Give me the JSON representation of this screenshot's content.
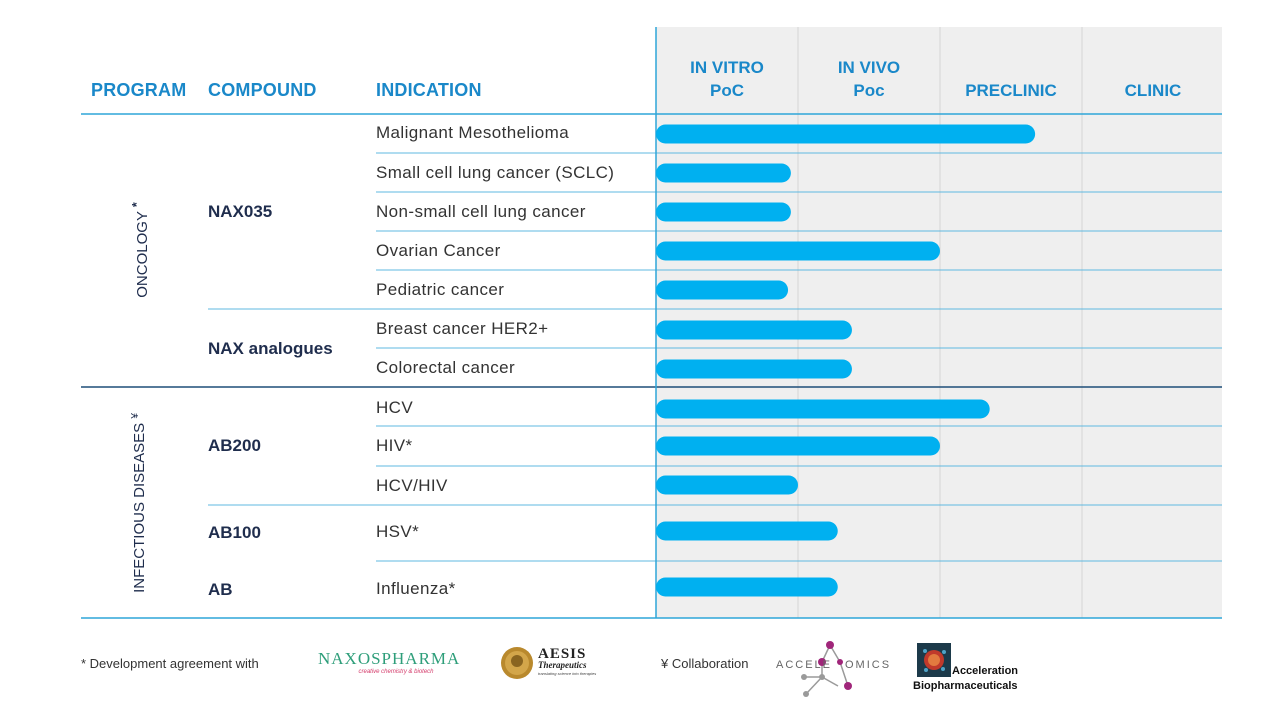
{
  "header": {
    "program": "PROGRAM",
    "compound": "COMPOUND",
    "indication": "INDICATION"
  },
  "chart_data": {
    "type": "bar",
    "orientation": "horizontal",
    "stages": [
      {
        "line1": "IN VITRO",
        "line2": "PoC"
      },
      {
        "line1": "IN VIVO",
        "line2": "Poc"
      },
      {
        "line1": "PRECLINIC",
        "line2": ""
      },
      {
        "line1": "CLINIC",
        "line2": ""
      }
    ],
    "xlim": [
      0,
      4
    ],
    "bar_color": "#00b0f0",
    "rows": [
      {
        "indication": "Malignant Mesothelioma",
        "value": 2.67
      },
      {
        "indication": "Small cell lung cancer (SCLC)",
        "value": 0.95
      },
      {
        "indication": "Non-small cell lung cancer",
        "value": 0.95
      },
      {
        "indication": "Ovarian Cancer",
        "value": 2.0
      },
      {
        "indication": "Pediatric cancer",
        "value": 0.93
      },
      {
        "indication": "Breast cancer HER2+",
        "value": 1.38
      },
      {
        "indication": "Colorectal cancer",
        "value": 1.38
      },
      {
        "indication": "HCV",
        "value": 2.35
      },
      {
        "indication": "HIV*",
        "value": 2.0
      },
      {
        "indication": "HCV/HIV",
        "value": 1.0
      },
      {
        "indication": "HSV*",
        "value": 1.28
      },
      {
        "indication": "Influenza*",
        "value": 1.28
      }
    ],
    "compounds": [
      {
        "label": "NAX035"
      },
      {
        "label": "NAX analogues"
      },
      {
        "label": "AB200"
      },
      {
        "label": "AB100"
      },
      {
        "label": "AB"
      }
    ],
    "programs": [
      {
        "label": "ONCOLOGY",
        "mark": "*"
      },
      {
        "label": "INFECTIOUS DISEASES",
        "mark": "¥"
      }
    ]
  },
  "footer": {
    "development_note": "*  Development agreement with",
    "naxos_name": "NAXOSPHARMA",
    "naxos_tagline": "creative chemistry & biotech",
    "aesis_name": "AESIS",
    "aesis_sub": "Therapeutics",
    "aesis_tagline": "translating science into therapies",
    "collab_note": "¥ Collaboration",
    "accele_left": "ACCELE",
    "accele_right": "OMICS",
    "accbio_line1": "Acceleration",
    "accbio_line2": "Biopharmaceuticals"
  }
}
